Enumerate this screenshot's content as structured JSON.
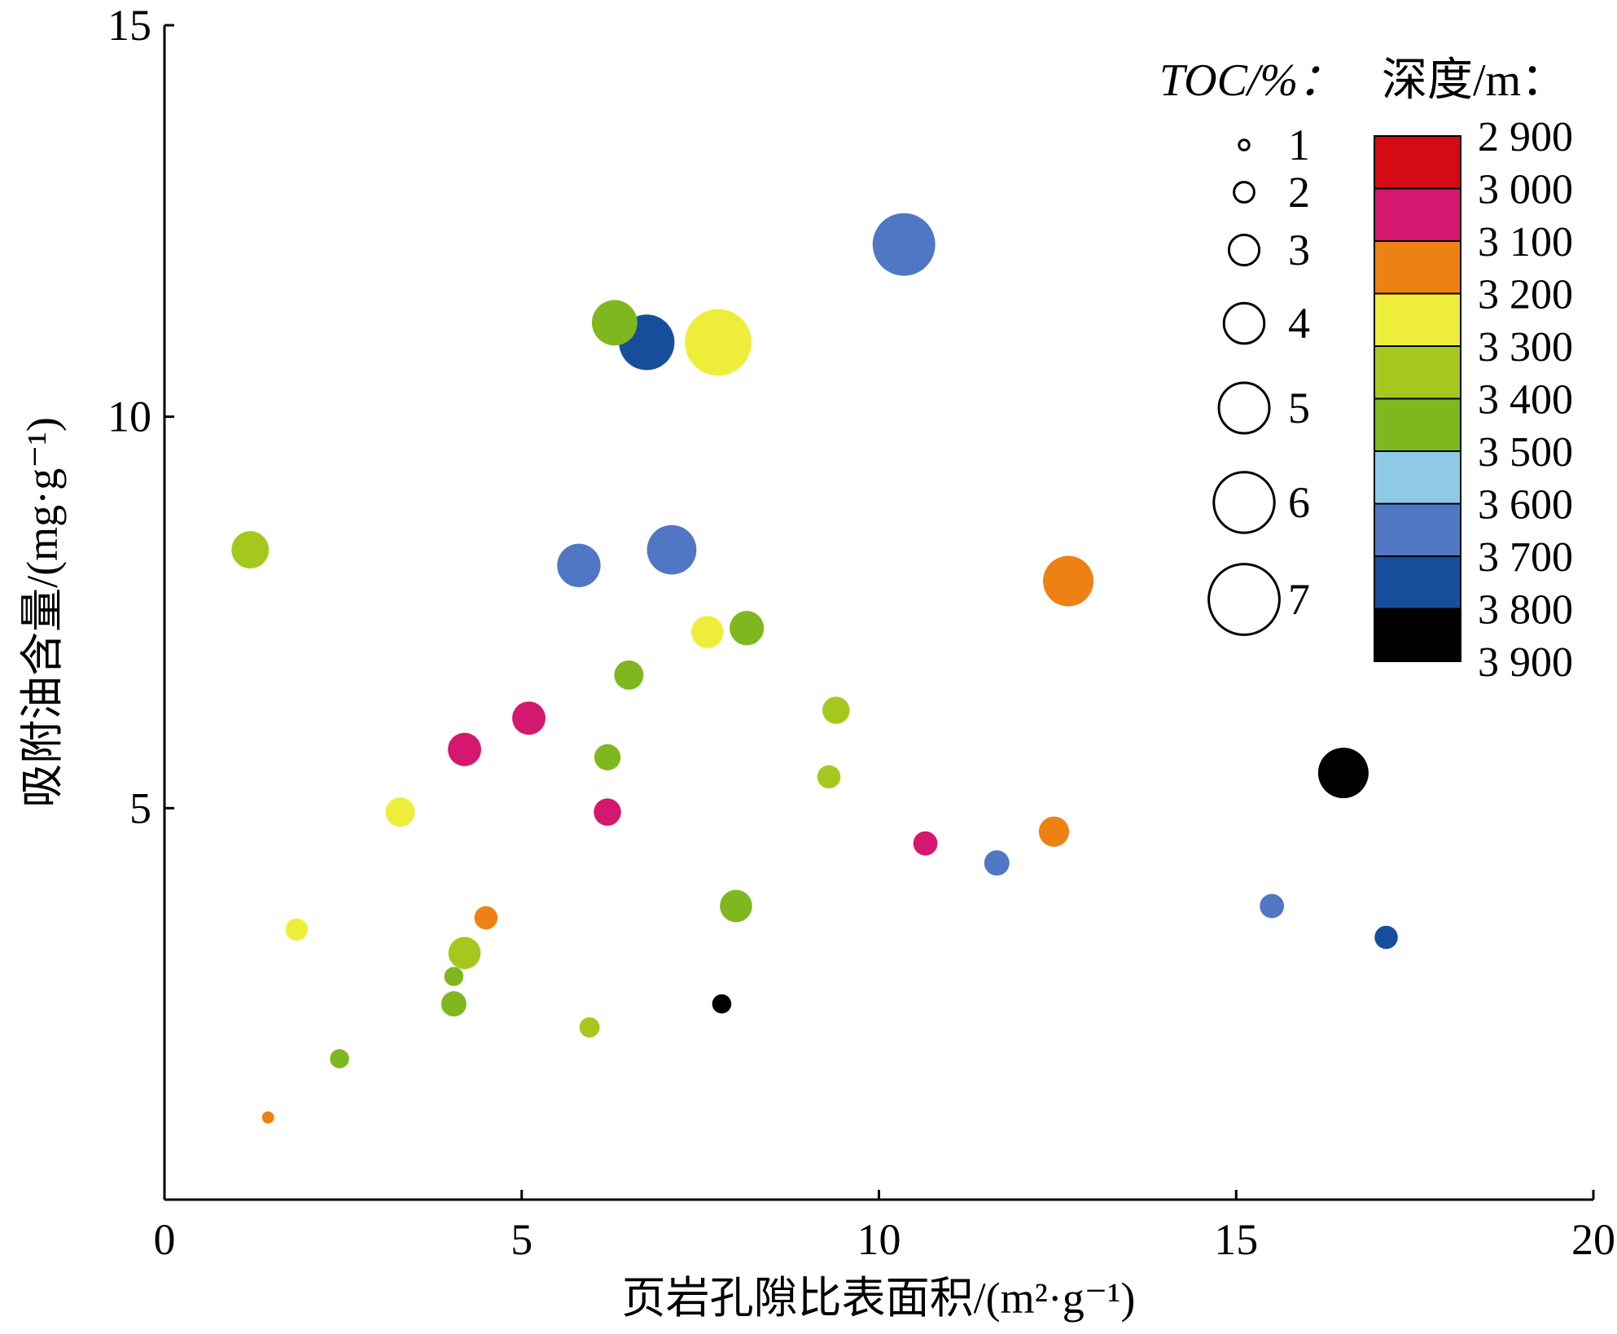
{
  "chart_data": {
    "type": "scatter",
    "title": "",
    "xlabel": "页岩孔隙比表面积/(m²·g⁻¹)",
    "ylabel": "吸附油含量/(mg·g⁻¹)",
    "xlim": [
      0,
      20
    ],
    "ylim": [
      0,
      15
    ],
    "x_ticks": [
      "0",
      "5",
      "10",
      "15",
      "20"
    ],
    "y_ticks": [
      "5",
      "10",
      "15"
    ],
    "grid": false,
    "size_legend": {
      "title": "TOC/%：",
      "items": [
        {
          "label": "1",
          "value": 1
        },
        {
          "label": "2",
          "value": 2
        },
        {
          "label": "3",
          "value": 3
        },
        {
          "label": "4",
          "value": 4
        },
        {
          "label": "5",
          "value": 5
        },
        {
          "label": "6",
          "value": 6
        },
        {
          "label": "7",
          "value": 7
        }
      ]
    },
    "color_legend": {
      "title": "深度/m：",
      "ticks": [
        "2 900",
        "3 000",
        "3 100",
        "3 200",
        "3 300",
        "3 400",
        "3 500",
        "3 600",
        "3 700",
        "3 800",
        "3 900"
      ],
      "colors": [
        "#d40a14",
        "#d4176f",
        "#ee8114",
        "#eeee3a",
        "#a6c81e",
        "#7eb81e",
        "#8ecae6",
        "#4f77c4",
        "#164e9c",
        "#000000"
      ]
    },
    "points": [
      {
        "x": 10.35,
        "y": 12.2,
        "toc": 6.2,
        "depth": 3650
      },
      {
        "x": 7.75,
        "y": 10.95,
        "toc": 6.6,
        "depth": 3250
      },
      {
        "x": 6.3,
        "y": 11.2,
        "toc": 4.5,
        "depth": 3450
      },
      {
        "x": 6.75,
        "y": 10.95,
        "toc": 5.5,
        "depth": 3750
      },
      {
        "x": 1.2,
        "y": 8.3,
        "toc": 3.7,
        "depth": 3350
      },
      {
        "x": 5.8,
        "y": 8.1,
        "toc": 4.3,
        "depth": 3650
      },
      {
        "x": 7.1,
        "y": 8.3,
        "toc": 4.9,
        "depth": 3650
      },
      {
        "x": 12.65,
        "y": 7.9,
        "toc": 5.0,
        "depth": 3150
      },
      {
        "x": 7.6,
        "y": 7.25,
        "toc": 3.2,
        "depth": 3250
      },
      {
        "x": 8.15,
        "y": 7.3,
        "toc": 3.4,
        "depth": 3450
      },
      {
        "x": 6.5,
        "y": 6.7,
        "toc": 2.9,
        "depth": 3450
      },
      {
        "x": 9.4,
        "y": 6.25,
        "toc": 2.7,
        "depth": 3350
      },
      {
        "x": 5.1,
        "y": 6.15,
        "toc": 3.3,
        "depth": 3050
      },
      {
        "x": 4.2,
        "y": 5.75,
        "toc": 3.3,
        "depth": 3050
      },
      {
        "x": 6.2,
        "y": 5.65,
        "toc": 2.6,
        "depth": 3450
      },
      {
        "x": 9.3,
        "y": 5.4,
        "toc": 2.3,
        "depth": 3350
      },
      {
        "x": 16.5,
        "y": 5.45,
        "toc": 5.0,
        "depth": 3850
      },
      {
        "x": 3.3,
        "y": 4.95,
        "toc": 2.9,
        "depth": 3250
      },
      {
        "x": 6.2,
        "y": 4.95,
        "toc": 2.7,
        "depth": 3050
      },
      {
        "x": 12.45,
        "y": 4.7,
        "toc": 3.0,
        "depth": 3150
      },
      {
        "x": 10.65,
        "y": 4.55,
        "toc": 2.4,
        "depth": 3050
      },
      {
        "x": 11.65,
        "y": 4.3,
        "toc": 2.5,
        "depth": 3650
      },
      {
        "x": 8.0,
        "y": 3.75,
        "toc": 3.2,
        "depth": 3450
      },
      {
        "x": 15.5,
        "y": 3.75,
        "toc": 2.4,
        "depth": 3650
      },
      {
        "x": 4.5,
        "y": 3.6,
        "toc": 2.3,
        "depth": 3150
      },
      {
        "x": 1.85,
        "y": 3.45,
        "toc": 2.2,
        "depth": 3250
      },
      {
        "x": 17.1,
        "y": 3.35,
        "toc": 2.3,
        "depth": 3750
      },
      {
        "x": 4.2,
        "y": 3.15,
        "toc": 3.2,
        "depth": 3350
      },
      {
        "x": 4.05,
        "y": 2.85,
        "toc": 1.9,
        "depth": 3450
      },
      {
        "x": 4.05,
        "y": 2.5,
        "toc": 2.5,
        "depth": 3450
      },
      {
        "x": 7.8,
        "y": 2.5,
        "toc": 1.9,
        "depth": 3850
      },
      {
        "x": 5.95,
        "y": 2.2,
        "toc": 2.0,
        "depth": 3350
      },
      {
        "x": 2.45,
        "y": 1.8,
        "toc": 1.9,
        "depth": 3450
      },
      {
        "x": 1.45,
        "y": 1.05,
        "toc": 1.2,
        "depth": 3150
      }
    ]
  }
}
